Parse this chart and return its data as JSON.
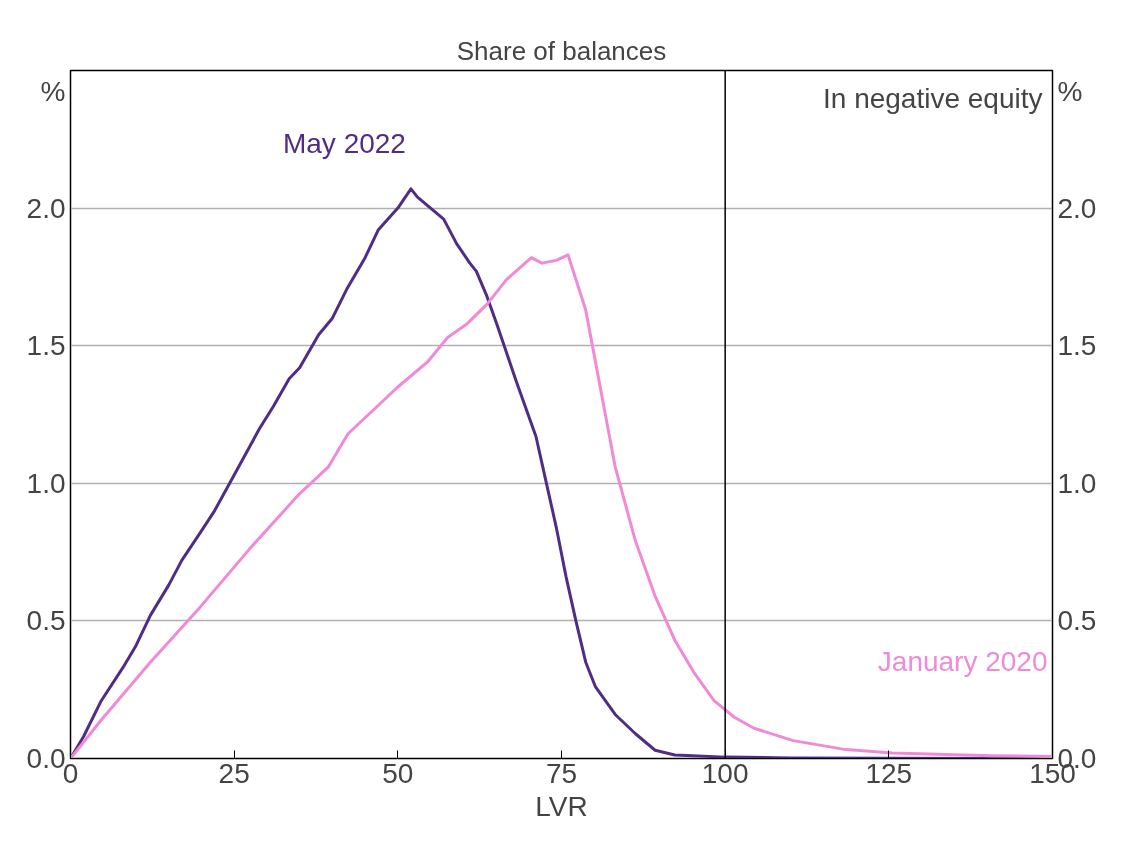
{
  "chart_data": {
    "type": "line",
    "title": "Share of balances",
    "xlabel": "LVR",
    "ylabel": "%",
    "y2label": "%",
    "xlim": [
      0,
      150
    ],
    "xticks": [
      0,
      25,
      50,
      75,
      100,
      125,
      150
    ],
    "ylim": [
      0,
      2.5
    ],
    "yticks": [
      {
        "value": 0,
        "label": "0.0"
      },
      {
        "value": 0.5,
        "label": "0.5"
      },
      {
        "value": 1,
        "label": "1.0"
      },
      {
        "value": 1.5,
        "label": "1.5"
      },
      {
        "value": 2,
        "label": "2.0"
      }
    ],
    "y2lim": [
      0,
      2.5
    ],
    "y2ticks": [
      {
        "value": 0,
        "label": "0.0"
      },
      {
        "value": 0.5,
        "label": "0.5"
      },
      {
        "value": 1,
        "label": "1.0"
      },
      {
        "value": 1.5,
        "label": "1.5"
      },
      {
        "value": 2,
        "label": "2.0"
      }
    ],
    "grid": "y",
    "legend": false,
    "marker": "none",
    "line_style": "solid",
    "series": [
      {
        "name": "May 2022",
        "color": "#4f2d86",
        "x": [
          0,
          2,
          4.7,
          8,
          10,
          12.2,
          15,
          17,
          19.8,
          22,
          25,
          28.9,
          31,
          33.4,
          35,
          37.9,
          40,
          42.3,
          45,
          47,
          50,
          52,
          53,
          55,
          57,
          59,
          61,
          62,
          63.6,
          65.1,
          68.1,
          71.1,
          72.7,
          74.2,
          75.7,
          77.2,
          78.7,
          80.2,
          83.2,
          86.3,
          89.3,
          92.3,
          95,
          100,
          110,
          125,
          150
        ],
        "values": [
          0,
          0.08,
          0.21,
          0.33,
          0.41,
          0.52,
          0.63,
          0.72,
          0.82,
          0.9,
          1.03,
          1.2,
          1.28,
          1.38,
          1.42,
          1.54,
          1.6,
          1.71,
          1.82,
          1.92,
          2.0,
          2.07,
          2.04,
          2.0,
          1.96,
          1.87,
          1.8,
          1.77,
          1.68,
          1.58,
          1.37,
          1.17,
          1.0,
          0.84,
          0.66,
          0.5,
          0.35,
          0.26,
          0.16,
          0.09,
          0.03,
          0.013,
          0.01,
          0.005,
          0.002,
          0.001,
          0.0
        ]
      },
      {
        "name": "January 2020",
        "color": "#f08ad6",
        "x": [
          0,
          4.7,
          12.2,
          19.8,
          27.3,
          34.9,
          39.4,
          42.4,
          50,
          54.5,
          57.6,
          60.6,
          63.6,
          66.6,
          70.4,
          72,
          74.2,
          76,
          78.7,
          80.2,
          83.2,
          86.3,
          89.3,
          92.3,
          95.3,
          98.3,
          101.4,
          104.4,
          110.4,
          118,
          125.5,
          140.6,
          150
        ],
        "values": [
          0,
          0.14,
          0.35,
          0.55,
          0.76,
          0.96,
          1.06,
          1.18,
          1.35,
          1.44,
          1.53,
          1.58,
          1.65,
          1.74,
          1.82,
          1.8,
          1.81,
          1.83,
          1.63,
          1.44,
          1.06,
          0.79,
          0.59,
          0.43,
          0.31,
          0.21,
          0.15,
          0.11,
          0.065,
          0.034,
          0.02,
          0.01,
          0.007
        ]
      }
    ],
    "ref_lines": [
      {
        "axis": "x",
        "value": 100,
        "color": "#000000"
      }
    ],
    "annotations": [
      "In negative equity"
    ]
  }
}
